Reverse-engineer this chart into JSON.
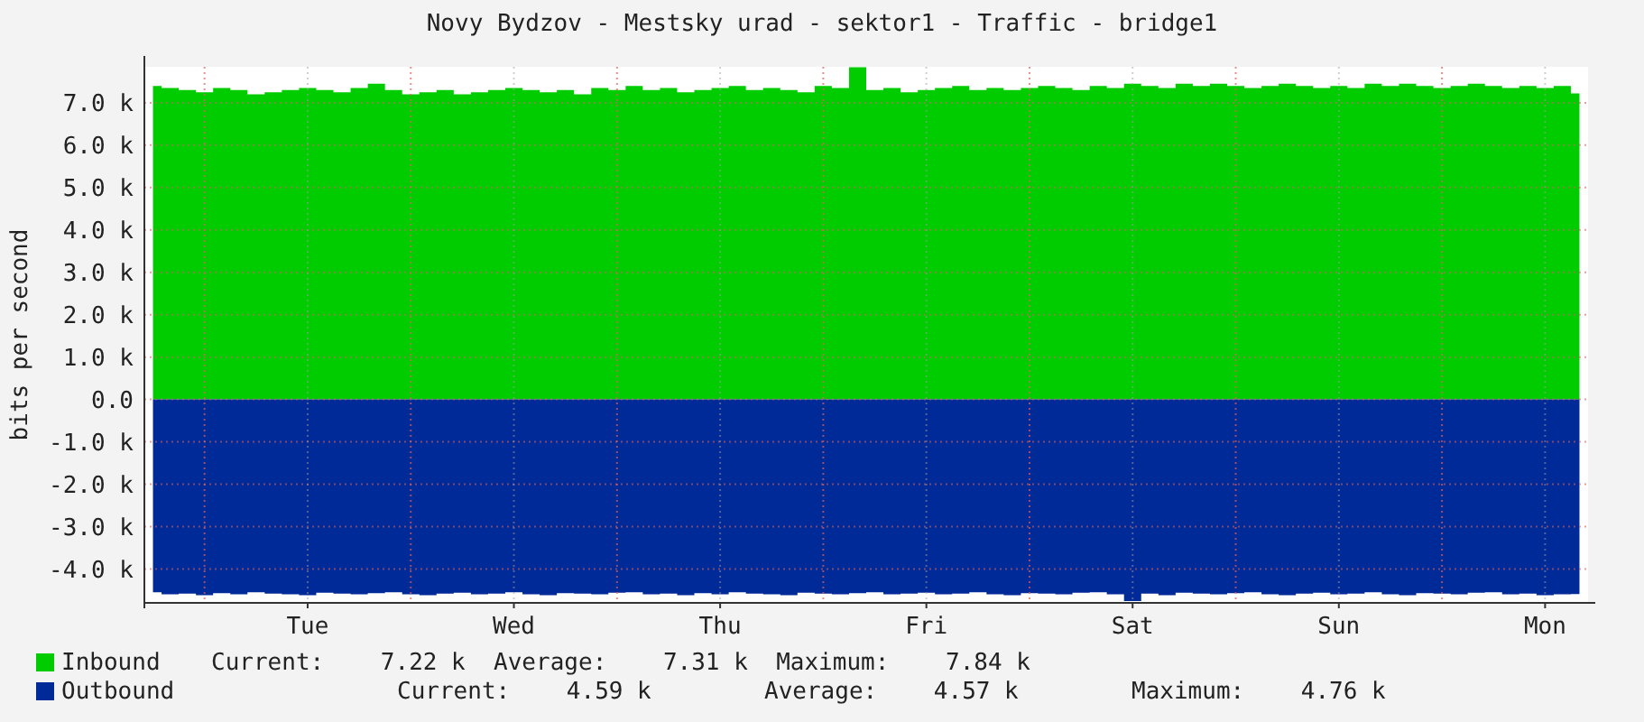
{
  "chart_data": {
    "type": "area",
    "title": "Novy Bydzov - Mestsky urad - sektor1 - Traffic - bridge1",
    "ylabel": "bits per second",
    "categories": [
      null,
      null,
      null,
      null,
      null,
      null,
      null,
      null,
      null,
      "Tue",
      null,
      null,
      null,
      null,
      null,
      null,
      null,
      null,
      null,
      null,
      null,
      "Wed",
      null,
      null,
      null,
      null,
      null,
      null,
      null,
      null,
      null,
      null,
      null,
      "Thu",
      null,
      null,
      null,
      null,
      null,
      null,
      null,
      null,
      null,
      null,
      null,
      "Fri",
      null,
      null,
      null,
      null,
      null,
      null,
      null,
      null,
      null,
      null,
      null,
      "Sat",
      null,
      null,
      null,
      null,
      null,
      null,
      null,
      null,
      null,
      null,
      null,
      "Sun",
      null,
      null,
      null,
      null,
      null,
      null,
      null,
      null,
      null,
      null,
      null,
      "Mon",
      null,
      null
    ],
    "series": [
      {
        "name": "Inbound",
        "color": "#00cc00",
        "values": [
          7.4,
          7.35,
          7.3,
          7.25,
          7.35,
          7.3,
          7.2,
          7.25,
          7.3,
          7.35,
          7.3,
          7.25,
          7.35,
          7.45,
          7.3,
          7.2,
          7.25,
          7.3,
          7.2,
          7.25,
          7.3,
          7.35,
          7.3,
          7.25,
          7.3,
          7.2,
          7.35,
          7.3,
          7.4,
          7.3,
          7.35,
          7.25,
          7.3,
          7.35,
          7.4,
          7.3,
          7.35,
          7.3,
          7.25,
          7.4,
          7.35,
          7.84,
          7.3,
          7.35,
          7.25,
          7.3,
          7.35,
          7.4,
          7.3,
          7.35,
          7.3,
          7.35,
          7.4,
          7.35,
          7.3,
          7.4,
          7.35,
          7.45,
          7.4,
          7.35,
          7.45,
          7.4,
          7.45,
          7.4,
          7.35,
          7.4,
          7.45,
          7.4,
          7.35,
          7.4,
          7.35,
          7.45,
          7.4,
          7.45,
          7.4,
          7.35,
          7.4,
          7.45,
          7.4,
          7.35,
          7.4,
          7.35,
          7.4,
          7.22
        ]
      },
      {
        "name": "Outbound",
        "color": "#002a97",
        "values": [
          -4.55,
          -4.6,
          -4.58,
          -4.62,
          -4.57,
          -4.6,
          -4.55,
          -4.58,
          -4.6,
          -4.62,
          -4.56,
          -4.58,
          -4.6,
          -4.57,
          -4.55,
          -4.6,
          -4.62,
          -4.58,
          -4.56,
          -4.6,
          -4.58,
          -4.55,
          -4.6,
          -4.62,
          -4.57,
          -4.58,
          -4.6,
          -4.56,
          -4.55,
          -4.6,
          -4.58,
          -4.62,
          -4.57,
          -4.6,
          -4.55,
          -4.58,
          -4.6,
          -4.62,
          -4.56,
          -4.58,
          -4.6,
          -4.57,
          -4.55,
          -4.6,
          -4.58,
          -4.56,
          -4.6,
          -4.58,
          -4.55,
          -4.6,
          -4.62,
          -4.57,
          -4.58,
          -4.6,
          -4.56,
          -4.55,
          -4.6,
          -4.76,
          -4.58,
          -4.62,
          -4.56,
          -4.58,
          -4.6,
          -4.57,
          -4.55,
          -4.6,
          -4.62,
          -4.58,
          -4.56,
          -4.6,
          -4.58,
          -4.55,
          -4.6,
          -4.62,
          -4.57,
          -4.58,
          -4.6,
          -4.56,
          -4.55,
          -4.6,
          -4.58,
          -4.62,
          -4.6,
          -4.59
        ]
      }
    ],
    "ylim": [
      -4.8,
      7.85
    ],
    "yticks": [
      {
        "value": -4,
        "label": "-4.0 k"
      },
      {
        "value": -3,
        "label": "-3.0 k"
      },
      {
        "value": -2,
        "label": "-2.0 k"
      },
      {
        "value": -1,
        "label": "-1.0 k"
      },
      {
        "value": 0,
        "label": "0.0"
      },
      {
        "value": 1,
        "label": "1.0 k"
      },
      {
        "value": 2,
        "label": "2.0 k"
      },
      {
        "value": 3,
        "label": "3.0 k"
      },
      {
        "value": 4,
        "label": "4.0 k"
      },
      {
        "value": 5,
        "label": "5.0 k"
      },
      {
        "value": 6,
        "label": "6.0 k"
      },
      {
        "value": 7,
        "label": "7.0 k"
      }
    ],
    "grid": true,
    "legend": "bottom",
    "annotations": [
      "Current:    7.22 k  Average:    7.31 k  Maximum:    7.84 k",
      "Current:    4.59 k        Average:    4.57 k        Maximum:    4.76 k"
    ]
  }
}
